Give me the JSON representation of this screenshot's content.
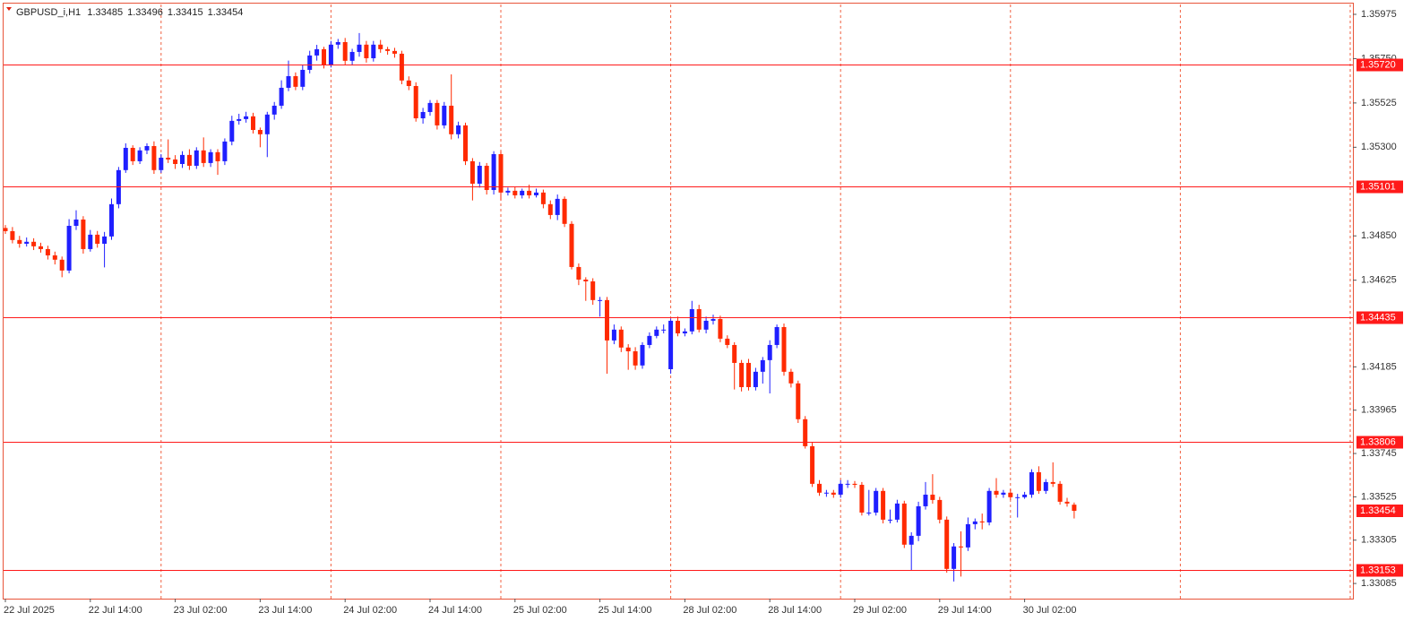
{
  "chart_data": {
    "type": "candlestick",
    "symbol": "GBPUSD_i,H1",
    "up_color": "#1f1fff",
    "down_color": "#ff2a00",
    "hline_color": "#ff1a1a",
    "grid": true,
    "ylim": [
      1.33008,
      1.36025
    ],
    "yticks": [
      1.35975,
      {
        "value": 1.3575,
        "label": "1.35750"
      },
      1.35525,
      {
        "value": 1.353,
        "label": "1.35300"
      },
      {
        "value": 1.3485,
        "label": "1.34850"
      },
      1.34625,
      1.34185,
      1.33965,
      1.33745,
      1.33525,
      1.33305,
      1.33085
    ],
    "hlines": [
      {
        "value": 1.3572,
        "label": "1.35720"
      },
      1.35101,
      1.34435,
      1.33806,
      1.33153
    ],
    "categories": [
      "22 Jul 2025",
      null,
      null,
      null,
      null,
      null,
      null,
      null,
      null,
      null,
      null,
      null,
      "22 Jul 14:00",
      null,
      null,
      null,
      null,
      null,
      null,
      null,
      null,
      null,
      null,
      null,
      "23 Jul 02:00",
      null,
      null,
      null,
      null,
      null,
      null,
      null,
      null,
      null,
      null,
      null,
      "23 Jul 14:00",
      null,
      null,
      null,
      null,
      null,
      null,
      null,
      null,
      null,
      null,
      null,
      "24 Jul 02:00",
      null,
      null,
      null,
      null,
      null,
      null,
      null,
      null,
      null,
      null,
      null,
      "24 Jul 14:00",
      null,
      null,
      null,
      null,
      null,
      null,
      null,
      null,
      null,
      null,
      null,
      "25 Jul 02:00",
      null,
      null,
      null,
      null,
      null,
      null,
      null,
      null,
      null,
      null,
      null,
      "25 Jul 14:00",
      null,
      null,
      null,
      null,
      null,
      null,
      null,
      null,
      null,
      null,
      null,
      "28 Jul 02:00",
      null,
      null,
      null,
      null,
      null,
      null,
      null,
      null,
      null,
      null,
      null,
      "28 Jul 14:00",
      null,
      null,
      null,
      null,
      null,
      null,
      null,
      null,
      null,
      null,
      null,
      "29 Jul 02:00",
      null,
      null,
      null,
      null,
      null,
      null,
      null,
      null,
      null,
      null,
      null,
      "29 Jul 14:00",
      null,
      null,
      null,
      null,
      null,
      null,
      null,
      null,
      null,
      null,
      null,
      "30 Jul 02:00",
      null,
      null,
      null,
      null,
      null,
      null,
      null
    ],
    "open": [
      1.3489,
      1.34874,
      1.34829,
      1.3481,
      1.3482,
      1.34797,
      1.34783,
      1.34751,
      1.34729,
      1.34674,
      1.34901,
      1.34933,
      1.34783,
      1.34856,
      1.3481,
      1.34847,
      1.35011,
      1.35184,
      1.35297,
      1.35229,
      1.35284,
      1.35306,
      1.35184,
      1.35247,
      1.35238,
      1.35215,
      1.35261,
      1.35206,
      1.35284,
      1.3522,
      1.35275,
      1.35229,
      1.35329,
      1.35434,
      1.35443,
      1.35457,
      1.35388,
      1.35366,
      1.35466,
      1.35511,
      1.35602,
      1.35661,
      1.35607,
      1.35693,
      1.35766,
      1.35798,
      1.3572,
      1.35821,
      1.35834,
      1.35739,
      1.35784,
      1.35821,
      1.35752,
      1.35821,
      1.35798,
      1.35789,
      1.35775,
      1.35639,
      1.35611,
      1.35447,
      1.35479,
      1.35525,
      1.35411,
      1.35511,
      1.35366,
      1.35411,
      1.35229,
      1.35115,
      1.35206,
      1.35083,
      1.35265,
      1.3507,
      1.35079,
      1.35056,
      1.35079,
      1.35056,
      1.3507,
      1.35011,
      1.34956,
      1.35038,
      1.34911,
      1.34692,
      1.34628,
      1.34619,
      1.34524,
      1.34524,
      1.34319,
      1.34374,
      1.34283,
      1.34264,
      1.34192,
      1.34296,
      1.34342,
      1.34374,
      1.34173,
      1.34419,
      1.34355,
      1.34365,
      1.34478,
      1.34374,
      1.34419,
      1.34428,
      1.34328,
      1.34296,
      1.34205,
      1.34205,
      1.34082,
      1.3416,
      1.34219,
      1.34296,
      1.34387,
      1.3416,
      1.34101,
      1.33919,
      1.33782,
      1.33591,
      1.33546,
      1.33546,
      1.33536,
      1.33591,
      1.33591,
      1.33586,
      1.33445,
      1.33445,
      1.33555,
      1.33409,
      1.33409,
      1.33491,
      1.33282,
      1.33327,
      1.33477,
      1.33536,
      1.33509,
      1.33409,
      1.33159,
      1.33273,
      1.33268,
      1.33386,
      1.334,
      1.33395,
      1.33555,
      1.33536,
      1.33546,
      1.33523,
      1.33523,
      1.33536,
      1.3365,
      1.33555,
      1.336,
      1.33591,
      1.335,
      1.33485
    ],
    "high": [
      1.34905,
      1.34895,
      1.3485,
      1.34842,
      1.34838,
      1.34815,
      1.348,
      1.3477,
      1.34745,
      1.34935,
      1.3498,
      1.3495,
      1.3488,
      1.34875,
      1.3487,
      1.3504,
      1.352,
      1.3532,
      1.3531,
      1.353,
      1.3532,
      1.3533,
      1.35265,
      1.3534,
      1.3526,
      1.3528,
      1.3529,
      1.353,
      1.3535,
      1.3529,
      1.3529,
      1.35345,
      1.3546,
      1.3547,
      1.3548,
      1.35475,
      1.354,
      1.3548,
      1.3553,
      1.3564,
      1.3574,
      1.3568,
      1.3572,
      1.3579,
      1.3582,
      1.3581,
      1.3584,
      1.3585,
      1.35855,
      1.358,
      1.3588,
      1.3584,
      1.3584,
      1.35845,
      1.3581,
      1.35805,
      1.3579,
      1.3566,
      1.3563,
      1.355,
      1.3554,
      1.3554,
      1.3553,
      1.3567,
      1.3543,
      1.35425,
      1.35245,
      1.35225,
      1.3522,
      1.3528,
      1.3528,
      1.35095,
      1.351,
      1.3509,
      1.3511,
      1.3509,
      1.35085,
      1.3503,
      1.3506,
      1.3505,
      1.34925,
      1.3471,
      1.3464,
      1.34635,
      1.3454,
      1.3454,
      1.344,
      1.3439,
      1.343,
      1.34285,
      1.3431,
      1.3436,
      1.3439,
      1.344,
      1.3443,
      1.3444,
      1.3438,
      1.3452,
      1.345,
      1.3444,
      1.3445,
      1.34445,
      1.34345,
      1.3431,
      1.3422,
      1.34225,
      1.3418,
      1.34235,
      1.3432,
      1.344,
      1.34405,
      1.34175,
      1.34115,
      1.33935,
      1.338,
      1.3361,
      1.3356,
      1.3356,
      1.3361,
      1.3361,
      1.33605,
      1.336,
      1.3356,
      1.3357,
      1.3357,
      1.3346,
      1.3351,
      1.33505,
      1.33345,
      1.335,
      1.336,
      1.3364,
      1.33525,
      1.33425,
      1.3329,
      1.3335,
      1.3342,
      1.33415,
      1.3344,
      1.3357,
      1.3362,
      1.3356,
      1.33565,
      1.3354,
      1.3355,
      1.33665,
      1.3368,
      1.33615,
      1.337,
      1.33605,
      1.3352,
      1.33496
    ],
    "low": [
      1.3486,
      1.34812,
      1.3479,
      1.34796,
      1.34778,
      1.34765,
      1.3473,
      1.34705,
      1.3464,
      1.3466,
      1.3488,
      1.3476,
      1.3477,
      1.3479,
      1.3469,
      1.3483,
      1.3499,
      1.3517,
      1.3521,
      1.35215,
      1.35265,
      1.35165,
      1.3517,
      1.3522,
      1.3519,
      1.35195,
      1.35185,
      1.3519,
      1.352,
      1.352,
      1.3516,
      1.3521,
      1.3531,
      1.35415,
      1.35425,
      1.3537,
      1.353,
      1.3525,
      1.3544,
      1.35495,
      1.35585,
      1.3559,
      1.3559,
      1.35675,
      1.3574,
      1.357,
      1.35705,
      1.358,
      1.3572,
      1.3572,
      1.3576,
      1.3573,
      1.35735,
      1.3578,
      1.3577,
      1.35755,
      1.3562,
      1.3559,
      1.3543,
      1.3542,
      1.3546,
      1.3539,
      1.35395,
      1.3534,
      1.35345,
      1.3521,
      1.3503,
      1.35095,
      1.3506,
      1.3506,
      1.3503,
      1.35055,
      1.3504,
      1.3504,
      1.3504,
      1.35045,
      1.3499,
      1.34935,
      1.3493,
      1.34895,
      1.3468,
      1.346,
      1.3452,
      1.345,
      1.3444,
      1.3415,
      1.343,
      1.3426,
      1.3417,
      1.3417,
      1.34175,
      1.3428,
      1.3433,
      1.34355,
      1.3415,
      1.3434,
      1.3434,
      1.3435,
      1.3436,
      1.34355,
      1.344,
      1.3431,
      1.3428,
      1.3407,
      1.3406,
      1.34065,
      1.34065,
      1.341,
      1.3405,
      1.3428,
      1.3414,
      1.3408,
      1.339,
      1.3377,
      1.33575,
      1.3353,
      1.33525,
      1.3352,
      1.3352,
      1.3357,
      1.3357,
      1.3343,
      1.3343,
      1.3343,
      1.3339,
      1.3339,
      1.33395,
      1.33265,
      1.3315,
      1.333,
      1.3346,
      1.3349,
      1.3339,
      1.3314,
      1.33095,
      1.3312,
      1.3325,
      1.3336,
      1.3336,
      1.3338,
      1.3352,
      1.3352,
      1.3351,
      1.3342,
      1.33515,
      1.3352,
      1.3354,
      1.3354,
      1.33575,
      1.33485,
      1.33475,
      1.33415
    ],
    "close": [
      1.34874,
      1.34829,
      1.3481,
      1.3482,
      1.34797,
      1.34783,
      1.34751,
      1.34729,
      1.34674,
      1.34901,
      1.34933,
      1.34783,
      1.34856,
      1.3481,
      1.34847,
      1.35011,
      1.35184,
      1.35297,
      1.35229,
      1.35284,
      1.35306,
      1.35184,
      1.35247,
      1.35238,
      1.35215,
      1.35261,
      1.35206,
      1.35284,
      1.3522,
      1.35275,
      1.35229,
      1.35329,
      1.35434,
      1.35443,
      1.35457,
      1.35388,
      1.35366,
      1.35466,
      1.35511,
      1.35602,
      1.35661,
      1.35607,
      1.35693,
      1.35766,
      1.35798,
      1.3572,
      1.35821,
      1.35834,
      1.35739,
      1.35784,
      1.35821,
      1.35752,
      1.35821,
      1.35798,
      1.35789,
      1.35775,
      1.35639,
      1.35611,
      1.35447,
      1.35479,
      1.35525,
      1.35411,
      1.35511,
      1.35366,
      1.35411,
      1.35229,
      1.35115,
      1.35206,
      1.35083,
      1.35265,
      1.3507,
      1.35079,
      1.35056,
      1.35079,
      1.35056,
      1.3507,
      1.35011,
      1.34956,
      1.35038,
      1.34911,
      1.34692,
      1.34628,
      1.34619,
      1.34524,
      1.34524,
      1.34319,
      1.34374,
      1.34283,
      1.34264,
      1.34192,
      1.34296,
      1.34342,
      1.34374,
      1.34374,
      1.34419,
      1.34355,
      1.34365,
      1.34478,
      1.34374,
      1.34419,
      1.34428,
      1.34328,
      1.34296,
      1.34205,
      1.34082,
      1.34082,
      1.3416,
      1.34219,
      1.34296,
      1.34387,
      1.3416,
      1.34101,
      1.33919,
      1.33782,
      1.33591,
      1.33546,
      1.33546,
      1.33536,
      1.33591,
      1.33591,
      1.33586,
      1.33445,
      1.33445,
      1.33555,
      1.33409,
      1.33409,
      1.33491,
      1.33282,
      1.33327,
      1.33477,
      1.33536,
      1.33509,
      1.33409,
      1.33159,
      1.33273,
      1.33268,
      1.33386,
      1.334,
      1.33395,
      1.33555,
      1.33536,
      1.33546,
      1.33523,
      1.33523,
      1.33536,
      1.3365,
      1.33555,
      1.336,
      1.33591,
      1.335,
      1.33491,
      1.33454
    ]
  }
}
